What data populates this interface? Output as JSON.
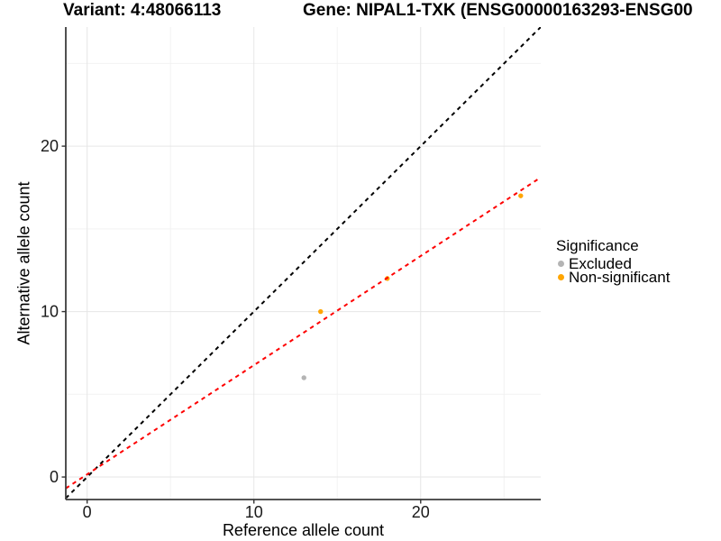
{
  "header": {
    "variant_title": "Variant: 4:48066113",
    "gene_title": "Gene: NIPAL1-TXK (ENSG00000163293-ENSG00"
  },
  "chart_data": {
    "type": "scatter",
    "xlabel": "Reference allele count",
    "ylabel": "Alternative allele count",
    "xlim": [
      -1.28,
      27.2
    ],
    "ylim": [
      -1.36,
      27.2
    ],
    "x_major_ticks": [
      0,
      10,
      20
    ],
    "x_minor_gridlines": [
      5,
      15,
      25
    ],
    "y_major_ticks": [
      0,
      10,
      20
    ],
    "y_minor_gridlines": [
      5,
      15,
      25
    ],
    "grid": true,
    "points": [
      {
        "x": 13,
        "y": 6,
        "significance": "Excluded"
      },
      {
        "x": 14,
        "y": 10,
        "significance": "Non-significant"
      },
      {
        "x": 18,
        "y": 12,
        "significance": "Non-significant"
      },
      {
        "x": 26,
        "y": 17,
        "significance": "Non-significant"
      }
    ],
    "lines": [
      {
        "name": "identity-line",
        "slope": 1,
        "intercept": 0,
        "color": "#000000",
        "style": "dashed"
      },
      {
        "name": "fit-line",
        "slope": 0.66,
        "intercept": 0.16,
        "color": "#fe0000",
        "style": "dashed"
      }
    ],
    "series_colors": {
      "Excluded": "#b4b4b4",
      "Non-significant": "#ffa500"
    },
    "legend": {
      "title": "Significance",
      "position": "right",
      "items": [
        {
          "label": "Excluded",
          "color": "#b4b4b4"
        },
        {
          "label": "Non-significant",
          "color": "#ffa500"
        }
      ]
    },
    "style_colors": {
      "major_grid": "#e6e6e6",
      "minor_grid": "#f2f2f2",
      "axis_line": "#3c3c3c",
      "tick_mark": "#333333",
      "tick_label": "#1a1a1a"
    }
  }
}
